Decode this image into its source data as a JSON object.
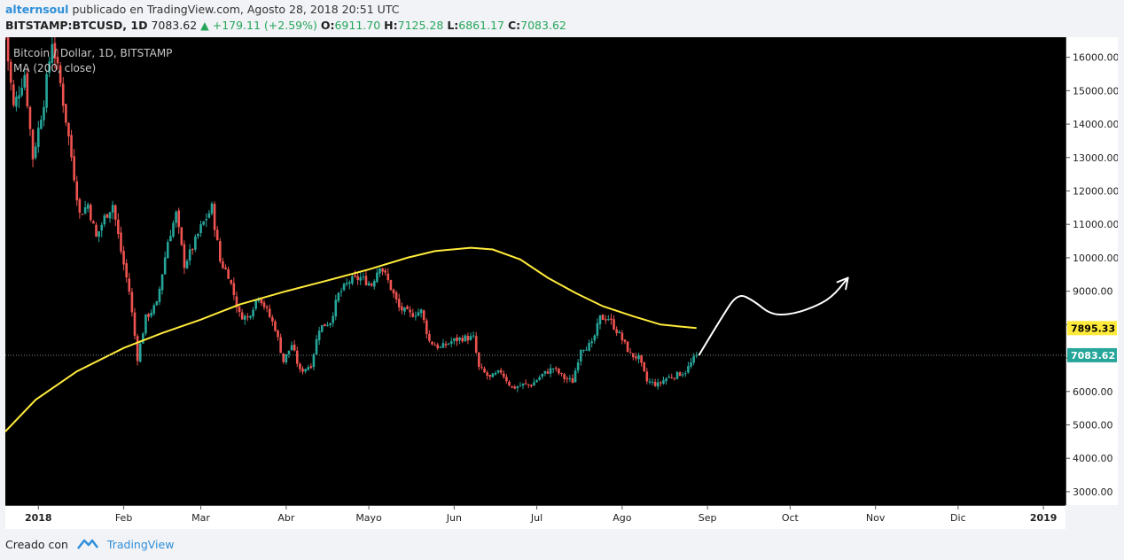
{
  "header": {
    "user": "alternsoul",
    "published": "publicado en TradingView.com, Agosto 28, 2018 20:51 UTC",
    "symbol": "BITSTAMP:BTCUSD, 1D",
    "price": "7083.62",
    "change": "▲ +179.11 (+2.59%)",
    "o_label": "O:",
    "o_value": "6911.70",
    "h_label": "H:",
    "h_value": "7125.28",
    "l_label": "L:",
    "l_value": "6861.17",
    "c_label": "C:",
    "c_value": "7083.62"
  },
  "legend": {
    "title": "Bitcoin / Dollar, 1D, BITSTAMP",
    "indicator": "MA (200, close)"
  },
  "footer": {
    "created_with": "Creado con",
    "brand": "TradingView"
  },
  "colors": {
    "up": "#26a69a",
    "down": "#ef5350",
    "ma": "#ffeb3b",
    "last_price_label": "#26a69a",
    "ma_label": "#ffeb3b",
    "background": "#000000"
  },
  "chart_data": {
    "type": "candlestick",
    "title": "Bitcoin / Dollar, 1D, BITSTAMP",
    "ylim": [
      2600,
      16600
    ],
    "y_ticks": [
      3000,
      4000,
      5000,
      6000,
      7000,
      8000,
      9000,
      10000,
      11000,
      12000,
      13000,
      14000,
      15000,
      16000
    ],
    "y_tick_labels": [
      "3000.00",
      "4000.00",
      "5000.00",
      "6000.00",
      "7000.00",
      "8000.00",
      "9000.00",
      "10000.00",
      "11000.00",
      "12000.00",
      "13000.00",
      "14000.00",
      "15000.00",
      "16000.00"
    ],
    "x_ticks": [
      "2018-01-01",
      "2018-02-01",
      "2018-03-01",
      "2018-04-01",
      "2018-05-01",
      "2018-06-01",
      "2018-07-01",
      "2018-08-01",
      "2018-09-01",
      "2018-10-01",
      "2018-11-01",
      "2018-12-01",
      "2019-01-01"
    ],
    "x_tick_labels": [
      "2018",
      "Feb",
      "Mar",
      "Abr",
      "Mayo",
      "Jun",
      "Jul",
      "Ago",
      "Sep",
      "Oct",
      "Nov",
      "Dic",
      "2019"
    ],
    "x_range": [
      "2017-12-20",
      "2019-01-09"
    ],
    "price_path": [
      [
        "2017-12-20",
        16600
      ],
      [
        "2017-12-23",
        14500
      ],
      [
        "2017-12-27",
        15500
      ],
      [
        "2017-12-30",
        13000
      ],
      [
        "2018-01-03",
        14700
      ],
      [
        "2018-01-06",
        16500
      ],
      [
        "2018-01-09",
        15200
      ],
      [
        "2018-01-12",
        13600
      ],
      [
        "2018-01-16",
        11300
      ],
      [
        "2018-01-19",
        11600
      ],
      [
        "2018-01-22",
        10600
      ],
      [
        "2018-01-25",
        11200
      ],
      [
        "2018-01-28",
        11600
      ],
      [
        "2018-01-31",
        10200
      ],
      [
        "2018-02-03",
        9000
      ],
      [
        "2018-02-06",
        7000
      ],
      [
        "2018-02-09",
        8200
      ],
      [
        "2018-02-13",
        8600
      ],
      [
        "2018-02-17",
        10500
      ],
      [
        "2018-02-20",
        11300
      ],
      [
        "2018-02-23",
        9800
      ],
      [
        "2018-02-26",
        10300
      ],
      [
        "2018-03-01",
        10900
      ],
      [
        "2018-03-05",
        11500
      ],
      [
        "2018-03-08",
        9900
      ],
      [
        "2018-03-11",
        9500
      ],
      [
        "2018-03-15",
        8300
      ],
      [
        "2018-03-18",
        8200
      ],
      [
        "2018-03-22",
        8900
      ],
      [
        "2018-03-25",
        8400
      ],
      [
        "2018-03-28",
        7900
      ],
      [
        "2018-03-31",
        6900
      ],
      [
        "2018-04-03",
        7400
      ],
      [
        "2018-04-06",
        6600
      ],
      [
        "2018-04-10",
        6800
      ],
      [
        "2018-04-13",
        7900
      ],
      [
        "2018-04-17",
        8100
      ],
      [
        "2018-04-20",
        8900
      ],
      [
        "2018-04-24",
        9300
      ],
      [
        "2018-04-28",
        9400
      ],
      [
        "2018-05-02",
        9200
      ],
      [
        "2018-05-05",
        9800
      ],
      [
        "2018-05-08",
        9300
      ],
      [
        "2018-05-12",
        8500
      ],
      [
        "2018-05-16",
        8300
      ],
      [
        "2018-05-20",
        8400
      ],
      [
        "2018-05-23",
        7500
      ],
      [
        "2018-05-27",
        7300
      ],
      [
        "2018-05-31",
        7500
      ],
      [
        "2018-06-04",
        7600
      ],
      [
        "2018-06-08",
        7600
      ],
      [
        "2018-06-10",
        6700
      ],
      [
        "2018-06-14",
        6400
      ],
      [
        "2018-06-18",
        6600
      ],
      [
        "2018-06-22",
        6100
      ],
      [
        "2018-06-26",
        6200
      ],
      [
        "2018-06-29",
        6200
      ],
      [
        "2018-07-03",
        6500
      ],
      [
        "2018-07-07",
        6700
      ],
      [
        "2018-07-11",
        6400
      ],
      [
        "2018-07-14",
        6300
      ],
      [
        "2018-07-17",
        7300
      ],
      [
        "2018-07-21",
        7400
      ],
      [
        "2018-07-24",
        8200
      ],
      [
        "2018-07-27",
        8200
      ],
      [
        "2018-07-31",
        7700
      ],
      [
        "2018-08-04",
        7100
      ],
      [
        "2018-08-07",
        7000
      ],
      [
        "2018-08-10",
        6300
      ],
      [
        "2018-08-14",
        6200
      ],
      [
        "2018-08-17",
        6400
      ],
      [
        "2018-08-21",
        6500
      ],
      [
        "2018-08-24",
        6600
      ],
      [
        "2018-08-28",
        7083.62
      ]
    ],
    "ma": {
      "name": "MA (200, close)",
      "points": [
        [
          "2017-12-20",
          4800
        ],
        [
          "2017-12-31",
          5750
        ],
        [
          "2018-01-15",
          6600
        ],
        [
          "2018-02-01",
          7300
        ],
        [
          "2018-02-15",
          7750
        ],
        [
          "2018-03-01",
          8150
        ],
        [
          "2018-03-15",
          8600
        ],
        [
          "2018-04-01",
          9000
        ],
        [
          "2018-04-15",
          9300
        ],
        [
          "2018-05-01",
          9650
        ],
        [
          "2018-05-15",
          10000
        ],
        [
          "2018-05-25",
          10200
        ],
        [
          "2018-06-07",
          10300
        ],
        [
          "2018-06-15",
          10250
        ],
        [
          "2018-06-25",
          9950
        ],
        [
          "2018-07-05",
          9400
        ],
        [
          "2018-07-15",
          8950
        ],
        [
          "2018-07-25",
          8550
        ],
        [
          "2018-08-05",
          8250
        ],
        [
          "2018-08-15",
          8000
        ],
        [
          "2018-08-28",
          7895.33
        ]
      ],
      "last_value": 7895.33,
      "last_label": "7895.33"
    },
    "last_price": 7083.62,
    "last_price_label": "7083.62",
    "projection_arrow": {
      "color": "#ffffff",
      "points": [
        [
          "2018-08-29",
          7100
        ],
        [
          "2018-09-06",
          8200
        ],
        [
          "2018-09-12",
          8950
        ],
        [
          "2018-09-18",
          8700
        ],
        [
          "2018-09-24",
          8300
        ],
        [
          "2018-10-01",
          8300
        ],
        [
          "2018-10-09",
          8500
        ],
        [
          "2018-10-16",
          8800
        ],
        [
          "2018-10-22",
          9400
        ]
      ]
    }
  }
}
